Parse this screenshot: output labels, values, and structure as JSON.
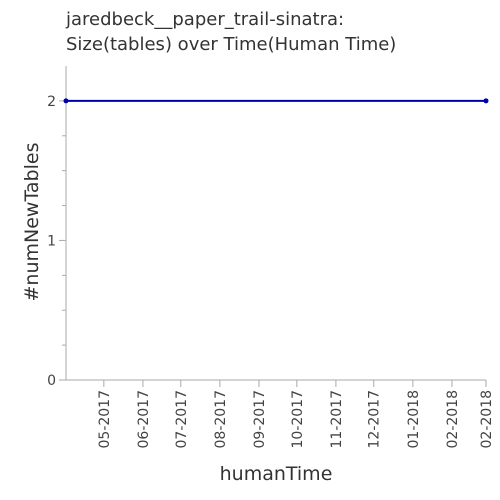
{
  "chart_data": {
    "type": "line",
    "title_lines": [
      "jaredbeck__paper_trail-sinatra:",
      "Size(tables) over Time(Human Time)"
    ],
    "xlabel": "humanTime",
    "ylabel": "#numNewTables",
    "x_tick_labels": [
      "05-2017",
      "06-2017",
      "07-2017",
      "08-2017",
      "09-2017",
      "10-2017",
      "11-2017",
      "12-2017",
      "01-2018",
      "02-2018",
      "02-2018"
    ],
    "y_tick_labels": [
      "0",
      "1",
      "2"
    ],
    "ylim": [
      0,
      2.25
    ],
    "y_major_ticks": [
      0,
      1,
      2
    ],
    "y_minor_ticks": [
      0.25,
      0.5,
      0.75,
      1.25,
      1.5,
      1.75
    ],
    "x": [
      "2017-04-01",
      "2018-02-28"
    ],
    "series": [
      {
        "values": [
          2,
          2
        ],
        "color": "#0000aa"
      }
    ],
    "grid": false
  }
}
